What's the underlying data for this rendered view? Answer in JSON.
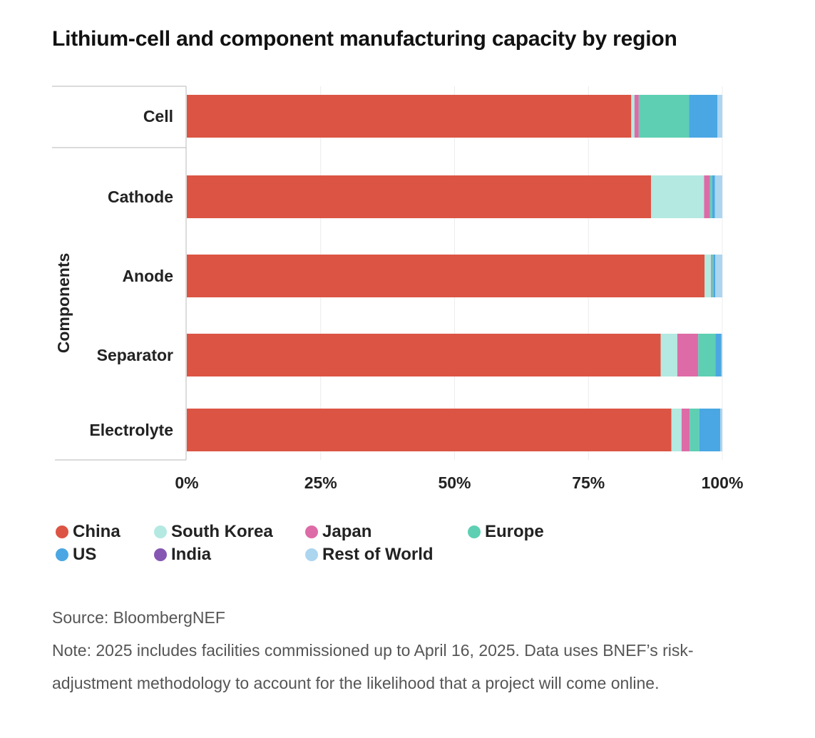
{
  "chart_data": {
    "type": "bar",
    "orientation": "horizontal",
    "stacked": true,
    "title": "Lithium-cell and component manufacturing capacity by region",
    "ylabel": "Components",
    "xlabel": "",
    "xlim": [
      0,
      100
    ],
    "x_ticks": [
      "0%",
      "25%",
      "50%",
      "75%",
      "100%"
    ],
    "categories": [
      "Cell",
      "Cathode",
      "Anode",
      "Separator",
      "Electrolyte"
    ],
    "series": [
      {
        "name": "China",
        "color": "#dc5443",
        "values": [
          83.0,
          86.7,
          96.7,
          88.5,
          90.5
        ]
      },
      {
        "name": "South Korea",
        "color": "#b3e9e1",
        "values": [
          0.6,
          9.9,
          1.2,
          3.1,
          1.9
        ]
      },
      {
        "name": "Japan",
        "color": "#dd6ba7",
        "values": [
          0.8,
          1.1,
          0.2,
          3.9,
          1.5
        ]
      },
      {
        "name": "Europe",
        "color": "#5ecfb3",
        "values": [
          9.4,
          0.4,
          0.3,
          3.2,
          1.8
        ]
      },
      {
        "name": "US",
        "color": "#4aa7e3",
        "values": [
          5.3,
          0.5,
          0.3,
          1.1,
          3.9
        ]
      },
      {
        "name": "India",
        "color": "#8657b2",
        "values": [
          0.0,
          0.0,
          0.0,
          0.0,
          0.0
        ]
      },
      {
        "name": "Rest of World",
        "color": "#acd5ef",
        "values": [
          0.9,
          1.4,
          1.3,
          0.2,
          0.4
        ]
      }
    ],
    "grid": true,
    "legend_position": "bottom"
  },
  "notes": {
    "source": "Source: BloombergNEF",
    "note": "Note: 2025 includes facilities commissioned up to April 16, 2025. Data uses BNEF’s risk-adjustment methodology to account for the likelihood that a project will come online."
  }
}
